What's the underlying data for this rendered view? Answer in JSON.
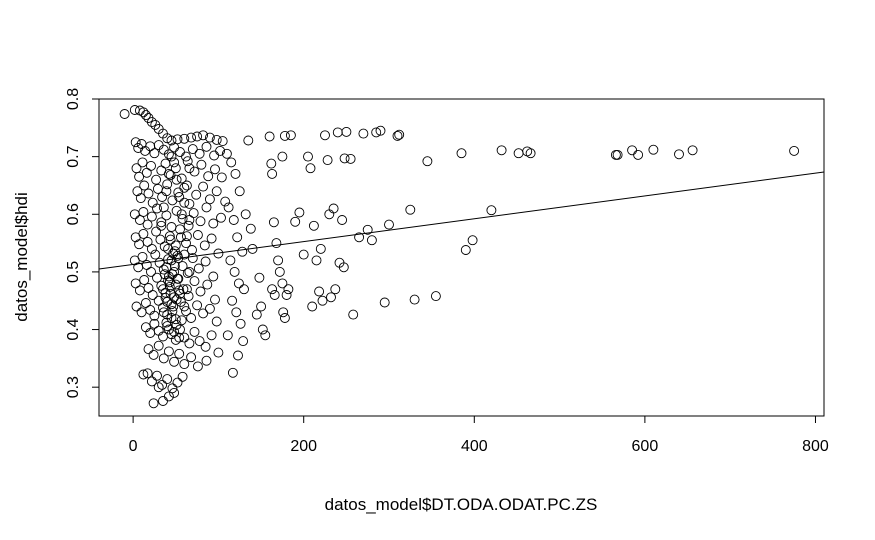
{
  "chart_data": {
    "type": "scatter",
    "title": "",
    "xlabel": "datos_model$DT.ODA.ODAT.PC.ZS",
    "ylabel": "datos_model$hdi",
    "xlim": [
      -40,
      810
    ],
    "ylim": [
      0.25,
      0.8
    ],
    "xticks": [
      0,
      200,
      400,
      600,
      800
    ],
    "yticks": [
      0.3,
      0.4,
      0.5,
      0.6,
      0.7,
      0.8
    ],
    "xtick_labels": [
      "0",
      "200",
      "400",
      "600",
      "800"
    ],
    "ytick_labels": [
      "0.3",
      "0.4",
      "0.5",
      "0.6",
      "0.7",
      "0.8"
    ],
    "grid": false,
    "legend": "none",
    "marker": "open-circle",
    "fit_line": {
      "intercept": 0.513,
      "slope": 0.000198
    },
    "points": [
      [
        -10,
        0.774
      ],
      [
        2,
        0.781
      ],
      [
        8,
        0.78
      ],
      [
        12,
        0.777
      ],
      [
        15,
        0.772
      ],
      [
        18,
        0.767
      ],
      [
        22,
        0.76
      ],
      [
        26,
        0.755
      ],
      [
        30,
        0.748
      ],
      [
        35,
        0.74
      ],
      [
        40,
        0.732
      ],
      [
        45,
        0.728
      ],
      [
        52,
        0.73
      ],
      [
        60,
        0.731
      ],
      [
        68,
        0.733
      ],
      [
        75,
        0.735
      ],
      [
        82,
        0.737
      ],
      [
        90,
        0.733
      ],
      [
        98,
        0.729
      ],
      [
        105,
        0.727
      ],
      [
        3,
        0.725
      ],
      [
        6,
        0.715
      ],
      [
        10,
        0.722
      ],
      [
        14,
        0.71
      ],
      [
        20,
        0.718
      ],
      [
        25,
        0.706
      ],
      [
        30,
        0.72
      ],
      [
        36,
        0.712
      ],
      [
        42,
        0.704
      ],
      [
        48,
        0.716
      ],
      [
        55,
        0.708
      ],
      [
        62,
        0.7
      ],
      [
        70,
        0.713
      ],
      [
        78,
        0.705
      ],
      [
        86,
        0.717
      ],
      [
        95,
        0.702
      ],
      [
        102,
        0.71
      ],
      [
        4,
        0.68
      ],
      [
        7,
        0.665
      ],
      [
        11,
        0.69
      ],
      [
        16,
        0.672
      ],
      [
        21,
        0.684
      ],
      [
        27,
        0.66
      ],
      [
        33,
        0.676
      ],
      [
        38,
        0.688
      ],
      [
        44,
        0.668
      ],
      [
        50,
        0.68
      ],
      [
        57,
        0.662
      ],
      [
        64,
        0.692
      ],
      [
        72,
        0.674
      ],
      [
        80,
        0.686
      ],
      [
        88,
        0.666
      ],
      [
        96,
        0.678
      ],
      [
        104,
        0.664
      ],
      [
        5,
        0.64
      ],
      [
        9,
        0.628
      ],
      [
        13,
        0.65
      ],
      [
        18,
        0.636
      ],
      [
        23,
        0.62
      ],
      [
        29,
        0.644
      ],
      [
        34,
        0.63
      ],
      [
        40,
        0.652
      ],
      [
        46,
        0.624
      ],
      [
        53,
        0.638
      ],
      [
        60,
        0.646
      ],
      [
        66,
        0.618
      ],
      [
        74,
        0.634
      ],
      [
        82,
        0.648
      ],
      [
        90,
        0.626
      ],
      [
        98,
        0.64
      ],
      [
        108,
        0.622
      ],
      [
        2,
        0.6
      ],
      [
        8,
        0.59
      ],
      [
        12,
        0.604
      ],
      [
        17,
        0.582
      ],
      [
        22,
        0.596
      ],
      [
        28,
        0.61
      ],
      [
        33,
        0.586
      ],
      [
        39,
        0.598
      ],
      [
        45,
        0.578
      ],
      [
        51,
        0.606
      ],
      [
        58,
        0.592
      ],
      [
        65,
        0.58
      ],
      [
        71,
        0.602
      ],
      [
        79,
        0.588
      ],
      [
        86,
        0.612
      ],
      [
        94,
        0.584
      ],
      [
        103,
        0.594
      ],
      [
        3,
        0.56
      ],
      [
        7,
        0.548
      ],
      [
        12,
        0.566
      ],
      [
        17,
        0.552
      ],
      [
        22,
        0.54
      ],
      [
        27,
        0.57
      ],
      [
        32,
        0.556
      ],
      [
        37,
        0.544
      ],
      [
        43,
        0.562
      ],
      [
        49,
        0.536
      ],
      [
        55,
        0.574
      ],
      [
        62,
        0.55
      ],
      [
        69,
        0.538
      ],
      [
        76,
        0.564
      ],
      [
        84,
        0.546
      ],
      [
        92,
        0.558
      ],
      [
        100,
        0.532
      ],
      [
        2,
        0.52
      ],
      [
        6,
        0.508
      ],
      [
        11,
        0.526
      ],
      [
        16,
        0.512
      ],
      [
        21,
        0.5
      ],
      [
        26,
        0.53
      ],
      [
        31,
        0.516
      ],
      [
        36,
        0.504
      ],
      [
        41,
        0.522
      ],
      [
        46,
        0.496
      ],
      [
        52,
        0.528
      ],
      [
        58,
        0.51
      ],
      [
        64,
        0.498
      ],
      [
        70,
        0.524
      ],
      [
        77,
        0.506
      ],
      [
        85,
        0.518
      ],
      [
        94,
        0.492
      ],
      [
        3,
        0.48
      ],
      [
        8,
        0.468
      ],
      [
        13,
        0.486
      ],
      [
        18,
        0.472
      ],
      [
        23,
        0.46
      ],
      [
        28,
        0.49
      ],
      [
        33,
        0.476
      ],
      [
        38,
        0.464
      ],
      [
        43,
        0.482
      ],
      [
        48,
        0.456
      ],
      [
        53,
        0.488
      ],
      [
        59,
        0.47
      ],
      [
        65,
        0.458
      ],
      [
        72,
        0.484
      ],
      [
        79,
        0.466
      ],
      [
        87,
        0.478
      ],
      [
        96,
        0.452
      ],
      [
        4,
        0.44
      ],
      [
        10,
        0.43
      ],
      [
        15,
        0.446
      ],
      [
        20,
        0.434
      ],
      [
        25,
        0.424
      ],
      [
        30,
        0.45
      ],
      [
        35,
        0.438
      ],
      [
        40,
        0.426
      ],
      [
        45,
        0.444
      ],
      [
        50,
        0.418
      ],
      [
        56,
        0.448
      ],
      [
        62,
        0.432
      ],
      [
        68,
        0.42
      ],
      [
        75,
        0.442
      ],
      [
        82,
        0.428
      ],
      [
        90,
        0.436
      ],
      [
        98,
        0.414
      ],
      [
        15,
        0.404
      ],
      [
        20,
        0.394
      ],
      [
        25,
        0.41
      ],
      [
        30,
        0.398
      ],
      [
        35,
        0.388
      ],
      [
        40,
        0.406
      ],
      [
        45,
        0.392
      ],
      [
        50,
        0.382
      ],
      [
        55,
        0.4
      ],
      [
        60,
        0.386
      ],
      [
        66,
        0.376
      ],
      [
        72,
        0.396
      ],
      [
        78,
        0.38
      ],
      [
        85,
        0.37
      ],
      [
        92,
        0.39
      ],
      [
        100,
        0.36
      ],
      [
        18,
        0.366
      ],
      [
        24,
        0.356
      ],
      [
        30,
        0.372
      ],
      [
        36,
        0.35
      ],
      [
        42,
        0.362
      ],
      [
        48,
        0.344
      ],
      [
        54,
        0.358
      ],
      [
        60,
        0.34
      ],
      [
        68,
        0.352
      ],
      [
        76,
        0.336
      ],
      [
        86,
        0.346
      ],
      [
        12,
        0.322
      ],
      [
        17,
        0.324
      ],
      [
        22,
        0.31
      ],
      [
        28,
        0.32
      ],
      [
        34,
        0.304
      ],
      [
        40,
        0.314
      ],
      [
        46,
        0.298
      ],
      [
        52,
        0.308
      ],
      [
        58,
        0.318
      ],
      [
        24,
        0.272
      ],
      [
        35,
        0.276
      ],
      [
        42,
        0.284
      ],
      [
        48,
        0.29
      ],
      [
        30,
        0.3
      ],
      [
        35,
        0.47
      ],
      [
        38,
        0.455
      ],
      [
        41,
        0.485
      ],
      [
        44,
        0.462
      ],
      [
        47,
        0.44
      ],
      [
        50,
        0.478
      ],
      [
        36,
        0.43
      ],
      [
        39,
        0.508
      ],
      [
        42,
        0.492
      ],
      [
        45,
        0.52
      ],
      [
        48,
        0.5
      ],
      [
        51,
        0.452
      ],
      [
        54,
        0.468
      ],
      [
        40,
        0.448
      ],
      [
        43,
        0.474
      ],
      [
        46,
        0.432
      ],
      [
        49,
        0.51
      ],
      [
        52,
        0.488
      ],
      [
        55,
        0.462
      ],
      [
        37,
        0.496
      ],
      [
        41,
        0.54
      ],
      [
        44,
        0.556
      ],
      [
        47,
        0.532
      ],
      [
        50,
        0.546
      ],
      [
        53,
        0.524
      ],
      [
        56,
        0.56
      ],
      [
        39,
        0.412
      ],
      [
        42,
        0.4
      ],
      [
        45,
        0.42
      ],
      [
        48,
        0.396
      ],
      [
        51,
        0.408
      ],
      [
        54,
        0.386
      ],
      [
        57,
        0.416
      ],
      [
        60,
        0.44
      ],
      [
        63,
        0.47
      ],
      [
        66,
        0.5
      ],
      [
        60,
        0.53
      ],
      [
        63,
        0.562
      ],
      [
        66,
        0.59
      ],
      [
        60,
        0.62
      ],
      [
        63,
        0.65
      ],
      [
        66,
        0.68
      ],
      [
        33,
        0.58
      ],
      [
        36,
        0.612
      ],
      [
        39,
        0.64
      ],
      [
        42,
        0.67
      ],
      [
        45,
        0.7
      ],
      [
        48,
        0.69
      ],
      [
        51,
        0.66
      ],
      [
        54,
        0.63
      ],
      [
        57,
        0.6
      ],
      [
        110,
        0.705
      ],
      [
        115,
        0.69
      ],
      [
        120,
        0.67
      ],
      [
        125,
        0.64
      ],
      [
        112,
        0.612
      ],
      [
        118,
        0.59
      ],
      [
        122,
        0.56
      ],
      [
        128,
        0.535
      ],
      [
        114,
        0.52
      ],
      [
        119,
        0.5
      ],
      [
        124,
        0.48
      ],
      [
        130,
        0.47
      ],
      [
        116,
        0.45
      ],
      [
        121,
        0.43
      ],
      [
        126,
        0.41
      ],
      [
        111,
        0.39
      ],
      [
        117,
        0.325
      ],
      [
        123,
        0.355
      ],
      [
        129,
        0.38
      ],
      [
        132,
        0.6
      ],
      [
        135,
        0.728
      ],
      [
        138,
        0.575
      ],
      [
        140,
        0.54
      ],
      [
        145,
        0.426
      ],
      [
        148,
        0.49
      ],
      [
        150,
        0.44
      ],
      [
        152,
        0.4
      ],
      [
        155,
        0.39
      ],
      [
        160,
        0.735
      ],
      [
        162,
        0.688
      ],
      [
        163,
        0.67
      ],
      [
        165,
        0.586
      ],
      [
        168,
        0.55
      ],
      [
        170,
        0.52
      ],
      [
        172,
        0.5
      ],
      [
        175,
        0.48
      ],
      [
        163,
        0.47
      ],
      [
        166,
        0.46
      ],
      [
        175,
        0.7
      ],
      [
        178,
        0.736
      ],
      [
        176,
        0.43
      ],
      [
        178,
        0.42
      ],
      [
        180,
        0.46
      ],
      [
        182,
        0.47
      ],
      [
        185,
        0.737
      ],
      [
        190,
        0.587
      ],
      [
        195,
        0.603
      ],
      [
        200,
        0.53
      ],
      [
        205,
        0.7
      ],
      [
        208,
        0.68
      ],
      [
        210,
        0.44
      ],
      [
        212,
        0.58
      ],
      [
        215,
        0.52
      ],
      [
        218,
        0.466
      ],
      [
        220,
        0.54
      ],
      [
        222,
        0.45
      ],
      [
        225,
        0.737
      ],
      [
        228,
        0.694
      ],
      [
        230,
        0.6
      ],
      [
        232,
        0.456
      ],
      [
        235,
        0.61
      ],
      [
        237,
        0.47
      ],
      [
        240,
        0.742
      ],
      [
        242,
        0.516
      ],
      [
        245,
        0.59
      ],
      [
        247,
        0.508
      ],
      [
        248,
        0.697
      ],
      [
        250,
        0.743
      ],
      [
        255,
        0.696
      ],
      [
        258,
        0.426
      ],
      [
        265,
        0.56
      ],
      [
        270,
        0.74
      ],
      [
        275,
        0.573
      ],
      [
        280,
        0.555
      ],
      [
        285,
        0.742
      ],
      [
        290,
        0.745
      ],
      [
        295,
        0.447
      ],
      [
        300,
        0.582
      ],
      [
        310,
        0.736
      ],
      [
        312,
        0.738
      ],
      [
        325,
        0.608
      ],
      [
        330,
        0.452
      ],
      [
        345,
        0.692
      ],
      [
        355,
        0.458
      ],
      [
        385,
        0.706
      ],
      [
        390,
        0.538
      ],
      [
        398,
        0.555
      ],
      [
        420,
        0.607
      ],
      [
        432,
        0.711
      ],
      [
        452,
        0.706
      ],
      [
        462,
        0.709
      ],
      [
        466,
        0.706
      ],
      [
        566,
        0.703
      ],
      [
        568,
        0.703
      ],
      [
        585,
        0.711
      ],
      [
        592,
        0.703
      ],
      [
        610,
        0.712
      ],
      [
        640,
        0.704
      ],
      [
        656,
        0.711
      ],
      [
        775,
        0.71
      ]
    ]
  }
}
